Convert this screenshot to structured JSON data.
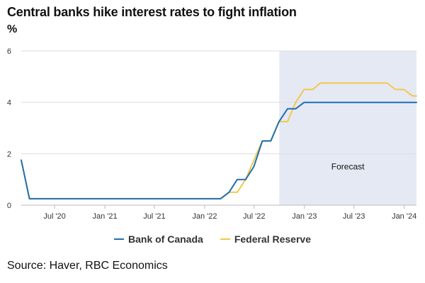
{
  "chart_data": {
    "type": "line",
    "title": "Central banks hike interest rates to fight inflation",
    "subtitle": "%",
    "ylim": [
      0,
      6
    ],
    "yticks": [
      0,
      2,
      4,
      6
    ],
    "xlim": [
      "2020-03-01",
      "2024-02-15"
    ],
    "xticks": [
      {
        "date": "2020-07-01",
        "label": "Jul '20"
      },
      {
        "date": "2021-01-01",
        "label": "Jan '21"
      },
      {
        "date": "2021-07-01",
        "label": "Jul '21"
      },
      {
        "date": "2022-01-01",
        "label": "Jan '22"
      },
      {
        "date": "2022-07-01",
        "label": "Jul '22"
      },
      {
        "date": "2023-01-01",
        "label": "Jan '23"
      },
      {
        "date": "2023-07-01",
        "label": "Jul '23"
      },
      {
        "date": "2024-01-01",
        "label": "Jan '24"
      }
    ],
    "forecast_region": {
      "start": "2022-10-01",
      "end": "2024-02-15",
      "label": "Forecast"
    },
    "grid": true,
    "legend_position": "bottom-center",
    "series": [
      {
        "name": "Bank of Canada",
        "color": "#1f6fb0",
        "points": [
          [
            "2020-03-01",
            1.75
          ],
          [
            "2020-03-31",
            0.25
          ],
          [
            "2022-02-28",
            0.25
          ],
          [
            "2022-03-31",
            0.5
          ],
          [
            "2022-04-30",
            1.0
          ],
          [
            "2022-05-31",
            1.0
          ],
          [
            "2022-06-30",
            1.5
          ],
          [
            "2022-07-31",
            2.5
          ],
          [
            "2022-08-31",
            2.5
          ],
          [
            "2022-09-30",
            3.25
          ],
          [
            "2022-10-31",
            3.75
          ],
          [
            "2022-11-30",
            3.75
          ],
          [
            "2022-12-31",
            4.0
          ],
          [
            "2024-02-15",
            4.0
          ]
        ]
      },
      {
        "name": "Federal Reserve",
        "color": "#f2c84b",
        "points": [
          [
            "2020-03-01",
            1.75
          ],
          [
            "2020-03-31",
            0.25
          ],
          [
            "2022-02-28",
            0.25
          ],
          [
            "2022-03-31",
            0.5
          ],
          [
            "2022-04-30",
            0.5
          ],
          [
            "2022-05-31",
            1.0
          ],
          [
            "2022-06-30",
            1.75
          ],
          [
            "2022-07-31",
            2.5
          ],
          [
            "2022-08-31",
            2.5
          ],
          [
            "2022-09-30",
            3.25
          ],
          [
            "2022-10-31",
            3.25
          ],
          [
            "2022-11-30",
            4.0
          ],
          [
            "2022-12-31",
            4.5
          ],
          [
            "2023-01-31",
            4.5
          ],
          [
            "2023-02-28",
            4.75
          ],
          [
            "2023-10-31",
            4.75
          ],
          [
            "2023-11-30",
            4.5
          ],
          [
            "2023-12-31",
            4.5
          ],
          [
            "2024-01-31",
            4.25
          ],
          [
            "2024-02-15",
            4.25
          ]
        ]
      }
    ]
  },
  "source": "Source: Haver, RBC Economics"
}
